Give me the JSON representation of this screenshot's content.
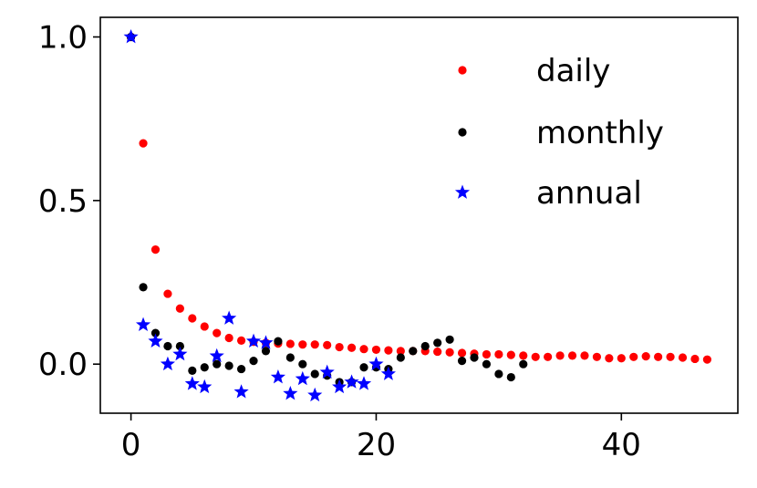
{
  "chart_data": {
    "type": "scatter",
    "title": "",
    "xlabel": "",
    "ylabel": "",
    "xlim": [
      -2.5,
      49.5
    ],
    "ylim": [
      -0.15,
      1.06
    ],
    "xticks": [
      0,
      20,
      40
    ],
    "xtick_labels": [
      "0",
      "20",
      "40"
    ],
    "yticks": [
      0.0,
      0.5,
      1.0
    ],
    "ytick_labels": [
      "0.0",
      "0.5",
      "1.0"
    ],
    "grid": false,
    "legend_position": "top-right",
    "series": [
      {
        "name": "daily",
        "marker": "dot",
        "color": "#ff0000",
        "x": [
          0,
          1,
          2,
          3,
          4,
          5,
          6,
          7,
          8,
          9,
          10,
          11,
          12,
          13,
          14,
          15,
          16,
          17,
          18,
          19,
          20,
          21,
          22,
          23,
          24,
          25,
          26,
          27,
          28,
          29,
          30,
          31,
          32,
          33,
          34,
          35,
          36,
          37,
          38,
          39,
          40,
          41,
          42,
          43,
          44,
          45,
          46,
          47
        ],
        "y": [
          1.0,
          0.675,
          0.35,
          0.215,
          0.17,
          0.14,
          0.115,
          0.095,
          0.08,
          0.072,
          0.068,
          0.065,
          0.063,
          0.062,
          0.06,
          0.06,
          0.058,
          0.052,
          0.05,
          0.046,
          0.044,
          0.042,
          0.04,
          0.04,
          0.04,
          0.038,
          0.036,
          0.034,
          0.032,
          0.03,
          0.03,
          0.028,
          0.026,
          0.022,
          0.022,
          0.026,
          0.026,
          0.026,
          0.022,
          0.018,
          0.018,
          0.022,
          0.024,
          0.022,
          0.022,
          0.02,
          0.016,
          0.014
        ]
      },
      {
        "name": "monthly",
        "marker": "dot",
        "color": "#000000",
        "x": [
          0,
          1,
          2,
          3,
          4,
          5,
          6,
          7,
          8,
          9,
          10,
          11,
          12,
          13,
          14,
          15,
          16,
          17,
          18,
          19,
          20,
          21,
          22,
          23,
          24,
          25,
          26,
          27,
          28,
          29,
          30,
          31,
          32
        ],
        "y": [
          1.0,
          0.235,
          0.095,
          0.055,
          0.055,
          -0.02,
          -0.01,
          0.0,
          -0.005,
          -0.015,
          0.01,
          0.04,
          0.07,
          0.02,
          0.0,
          -0.03,
          -0.035,
          -0.055,
          -0.055,
          -0.01,
          -0.01,
          -0.015,
          0.02,
          0.04,
          0.055,
          0.065,
          0.075,
          0.01,
          0.02,
          0.0,
          -0.03,
          -0.04,
          0.0
        ]
      },
      {
        "name": "annual",
        "marker": "star",
        "color": "#0000ff",
        "x": [
          0,
          1,
          2,
          3,
          4,
          5,
          6,
          7,
          8,
          9,
          10,
          11,
          12,
          13,
          14,
          15,
          16,
          17,
          18,
          19,
          20,
          21
        ],
        "y": [
          1.0,
          0.12,
          0.07,
          0.0,
          0.03,
          -0.06,
          -0.07,
          0.025,
          0.14,
          -0.085,
          0.07,
          0.065,
          -0.04,
          -0.09,
          -0.045,
          -0.095,
          -0.025,
          -0.07,
          -0.055,
          -0.06,
          0.0,
          -0.03
        ]
      }
    ]
  }
}
